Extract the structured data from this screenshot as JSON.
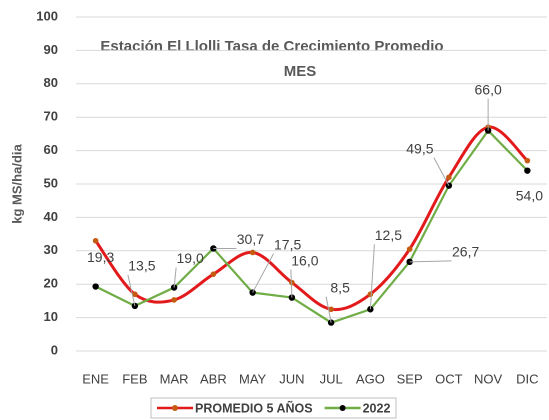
{
  "chart_data": {
    "type": "line",
    "title": "Estación El Llolli  Tasa de Crecimiento Promedio",
    "xlabel": "MES",
    "ylabel": "kg MS/ha/dia",
    "categories": [
      "ENE",
      "FEB",
      "MAR",
      "ABR",
      "MAY",
      "JUN",
      "JUL",
      "AGO",
      "SEP",
      "OCT",
      "NOV",
      "DIC"
    ],
    "series": [
      {
        "name": "PROMEDIO 5 AÑOS",
        "color": "#e31a1c",
        "smooth": true,
        "values": [
          33,
          17,
          15.3,
          23,
          29.5,
          20.5,
          12.5,
          17,
          30.5,
          52,
          67,
          57
        ]
      },
      {
        "name": "2022",
        "color": "#70ad47",
        "smooth": false,
        "values": [
          19.3,
          13.5,
          19.0,
          30.7,
          17.5,
          16.0,
          8.5,
          12.5,
          26.7,
          49.5,
          66.0,
          54.0
        ],
        "value_labels": [
          "19,3",
          "13,5",
          "19,0",
          "30,7",
          "17,5",
          "16,0",
          "8,5",
          "12,5",
          "26,7",
          "49,5",
          "66,0",
          "54,0"
        ]
      }
    ],
    "ylim": [
      0,
      100
    ],
    "yticks": [
      0,
      10,
      20,
      30,
      40,
      50,
      60,
      70,
      80,
      90,
      100
    ],
    "grid": true,
    "legend": "bottom"
  }
}
